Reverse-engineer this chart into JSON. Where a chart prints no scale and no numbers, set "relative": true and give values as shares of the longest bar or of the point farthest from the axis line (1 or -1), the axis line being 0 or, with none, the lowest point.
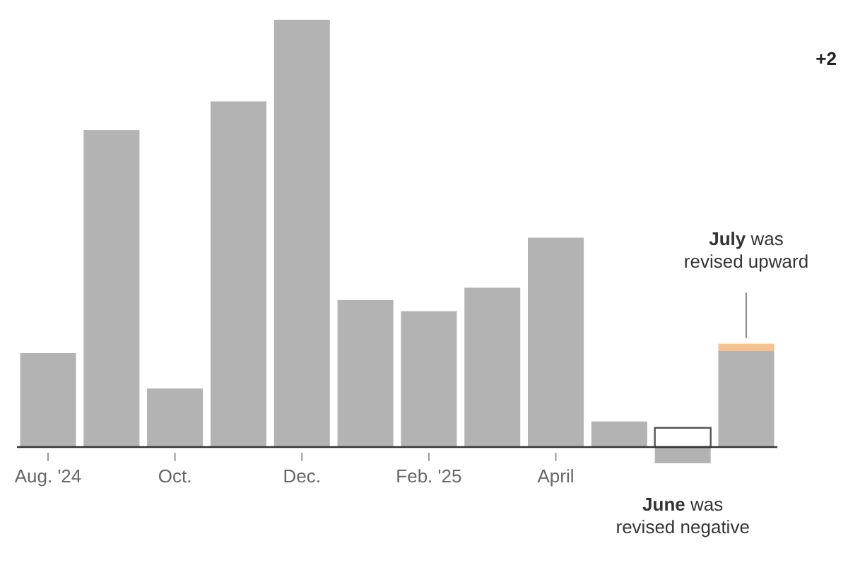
{
  "chart_data": {
    "type": "bar",
    "relative": true,
    "stacked": true,
    "categories": [
      "Aug. '24",
      null,
      "Oct.",
      null,
      "Dec.",
      null,
      "Feb. '25",
      null,
      "April",
      null,
      null,
      null
    ],
    "series": [
      {
        "color": "#b3b3b3",
        "values": [
          0.22,
          0.742,
          0.137,
          0.809,
          1,
          0.344,
          0.318,
          0.373,
          0.49,
          0.06,
          -0.038,
          0.226
        ]
      },
      {
        "color": "#f9c08f",
        "values": [
          null,
          null,
          null,
          null,
          null,
          null,
          null,
          null,
          null,
          null,
          null,
          0.016
        ]
      },
      {
        "color": "#ffffff",
        "values": [
          null,
          null,
          null,
          null,
          null,
          null,
          null,
          null,
          null,
          null,
          0.045,
          null
        ]
      }
    ],
    "annotations": [
      "+2",
      "July was revised upward",
      "June was revised negative"
    ]
  }
}
